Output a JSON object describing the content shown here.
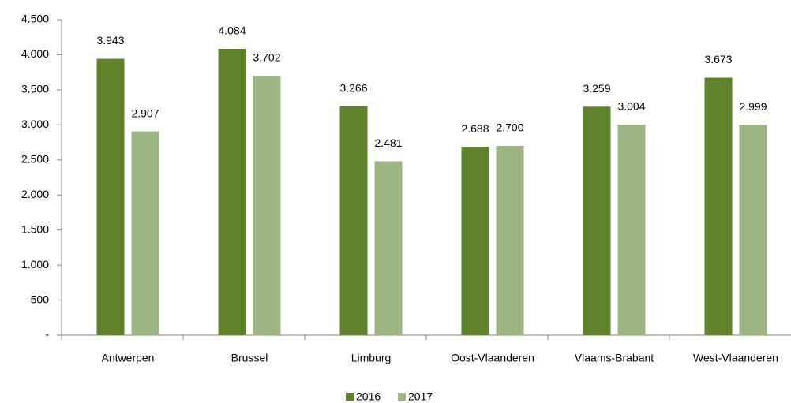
{
  "chart_data": {
    "type": "bar",
    "categories": [
      "Antwerpen",
      "Brussel",
      "Limburg",
      "Oost-Vlaanderen",
      "Vlaams-Brabant",
      "West-Vlaanderen"
    ],
    "series": [
      {
        "name": "2016",
        "color": "#5e832a",
        "values": [
          3943,
          4084,
          3266,
          2688,
          3259,
          3673
        ],
        "value_labels": [
          "3.943",
          "4.084",
          "3.266",
          "2.688",
          "3.259",
          "3.673"
        ]
      },
      {
        "name": "2017",
        "color": "#9db684",
        "values": [
          2907,
          3702,
          2481,
          2700,
          3004,
          2999
        ],
        "value_labels": [
          "2.907",
          "3.702",
          "2.481",
          "2.700",
          "3.004",
          "2.999"
        ]
      }
    ],
    "ylim": [
      0,
      4500
    ],
    "yticks": [
      {
        "value": 0,
        "label": "-"
      },
      500,
      {
        "value": 1000,
        "label": "1.000"
      },
      {
        "value": 1500,
        "label": "1.500"
      },
      {
        "value": 2000,
        "label": "2.000"
      },
      {
        "value": 2500,
        "label": "2.500"
      },
      {
        "value": 3000,
        "label": "3.000"
      },
      {
        "value": 3500,
        "label": "3.500"
      },
      {
        "value": 4000,
        "label": "4.000"
      },
      {
        "value": 4500,
        "label": "4.500"
      }
    ],
    "grid": false,
    "legend": "bottom"
  }
}
